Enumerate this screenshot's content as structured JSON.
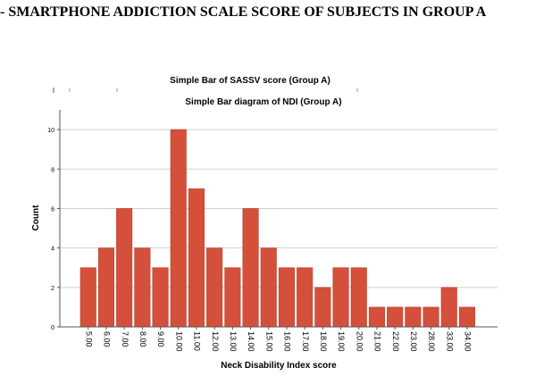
{
  "heading": "- SMARTPHONE ADDICTION SCALE SCORE OF SUBJECTS IN GROUP A",
  "colors": {
    "bar": "#d4503a",
    "bar_edge": "#b84330",
    "grid": "#d0d0d0",
    "axis": "#555555"
  },
  "chart_data": {
    "type": "bar",
    "title": "Simple Bar diagram of NDI (Group A)",
    "underlying_title": "Simple Bar of SASSV score (Group A)",
    "xlabel": "Neck Disability Index score",
    "ylabel": "Count",
    "ylim": [
      0,
      11
    ],
    "yticks": [
      0,
      2,
      4,
      6,
      8,
      10
    ],
    "grid": true,
    "legend": "none",
    "categories": [
      "5.00",
      "6.00",
      "7.00",
      "8.00",
      "9.00",
      "10.00",
      "11.00",
      "12.00",
      "13.00",
      "14.00",
      "15.00",
      "16.00",
      "17.00",
      "18.00",
      "19.00",
      "20.00",
      "21.00",
      "22.00",
      "23.00",
      "28.00",
      "33.00",
      "34.00"
    ],
    "values": [
      3,
      4,
      6,
      4,
      3,
      10,
      7,
      4,
      3,
      6,
      4,
      3,
      3,
      2,
      3,
      3,
      1,
      1,
      1,
      1,
      2,
      1
    ]
  }
}
